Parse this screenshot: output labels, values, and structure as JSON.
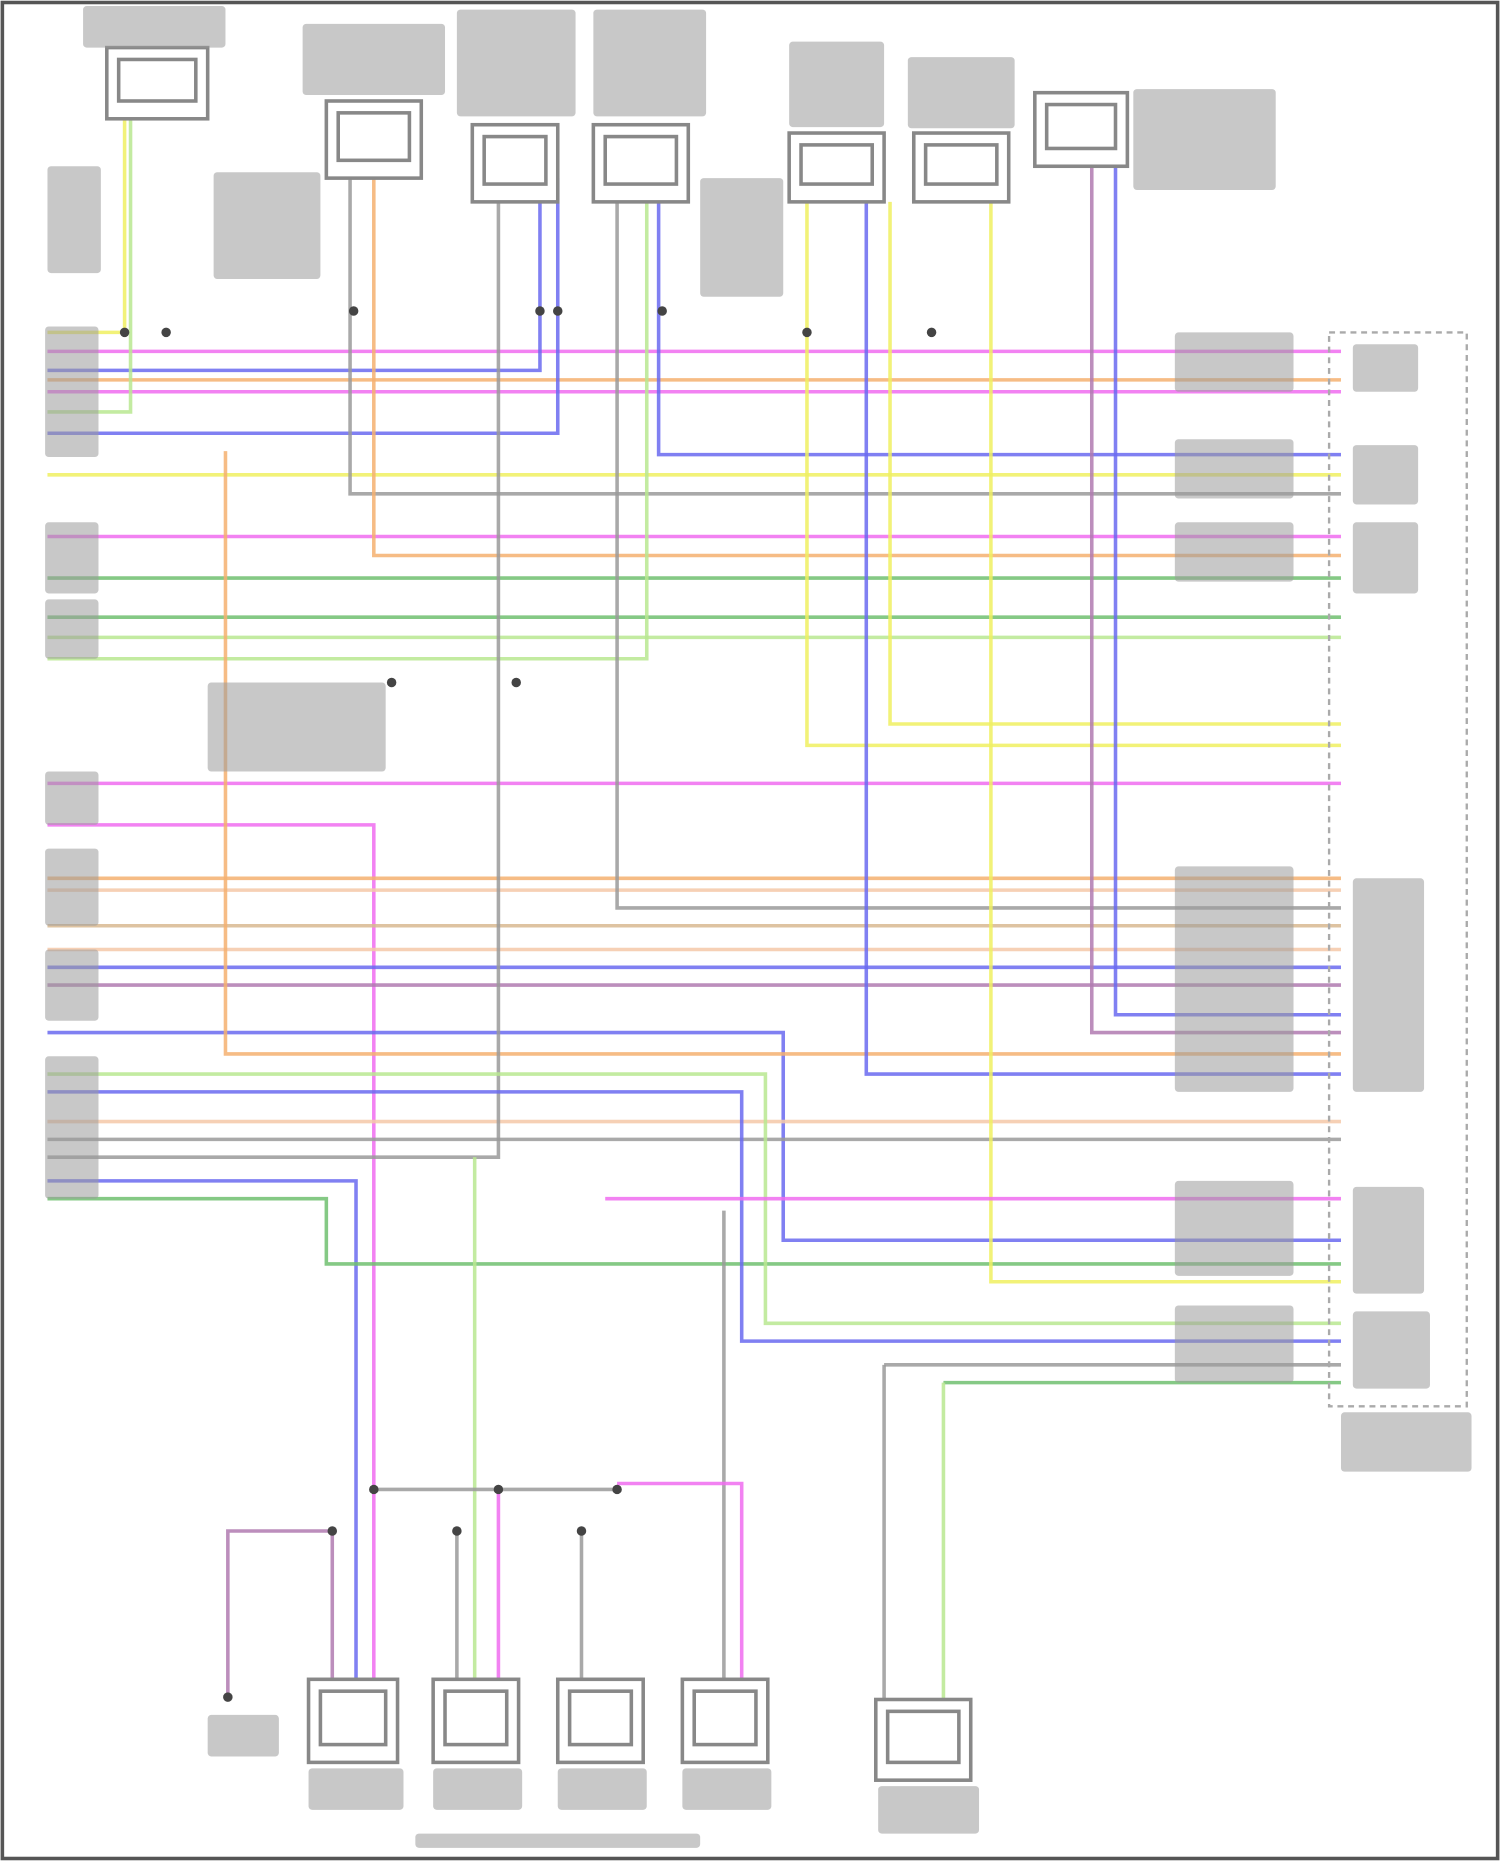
{
  "diagram": {
    "type": "wiring-diagram",
    "text_legible": false,
    "wire_colors": {
      "magenta": "#f06cf0",
      "blue": "#6a6af0",
      "yellow": "#f0f060",
      "orange": "#f5b070",
      "green": "#70c070",
      "light_green": "#b8e890",
      "gray": "#9a9a9a",
      "purple": "#b07ab0",
      "peach": "#f5c8a8",
      "tan": "#d8b890"
    }
  }
}
